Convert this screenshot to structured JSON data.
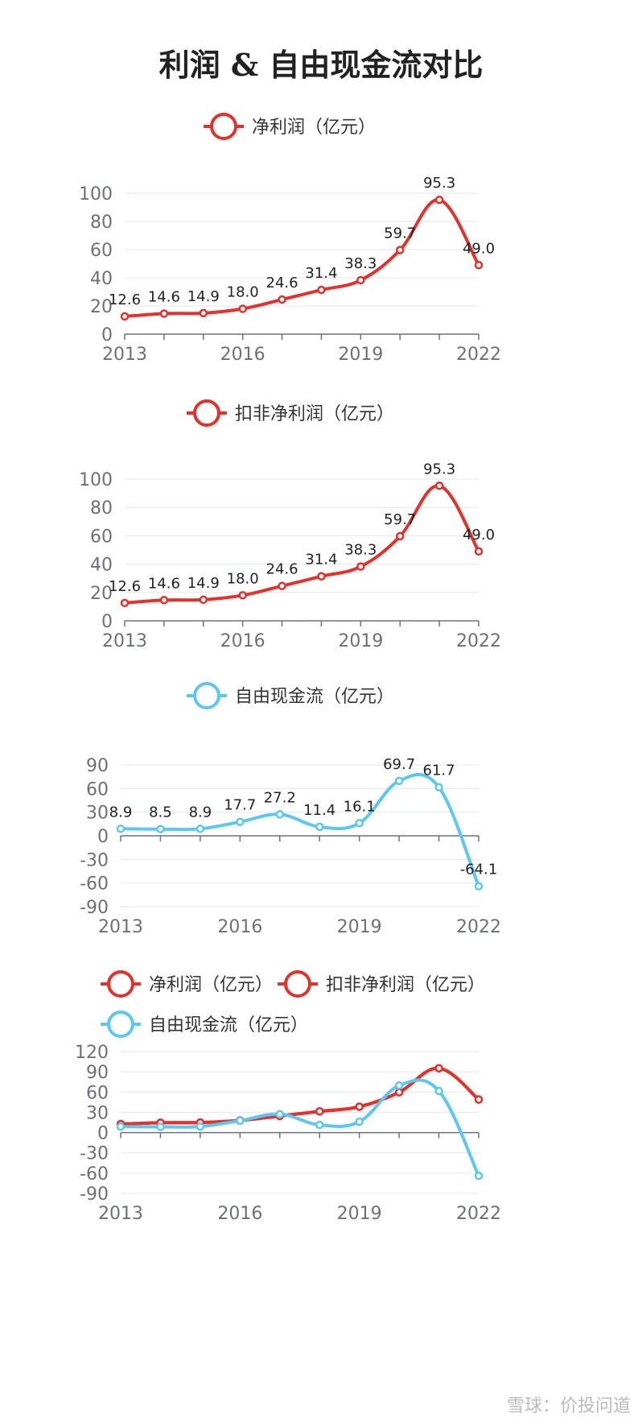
{
  "title": "利润 & 自由现金流对比",
  "watermark": "雪球：价投问道",
  "colors": {
    "red": "#e8302a",
    "blue": "#5ac8f2"
  },
  "chart_data": [
    {
      "type": "line",
      "legend": [
        "净利润（亿元）"
      ],
      "x": [
        2013,
        2014,
        2015,
        2016,
        2017,
        2018,
        2019,
        2020,
        2021,
        2022
      ],
      "x_tick_labels": [
        "2013",
        "2016",
        "2019",
        "2022"
      ],
      "y_ticks": [
        "0",
        "20",
        "40",
        "60",
        "80",
        "100"
      ],
      "ylim": [
        0,
        100
      ],
      "grid": true,
      "series": [
        {
          "name": "净利润（亿元）",
          "color": "red",
          "values": [
            12.6,
            14.6,
            14.9,
            18.0,
            24.6,
            31.4,
            38.3,
            59.7,
            95.3,
            49.0
          ],
          "labels": [
            "12.6",
            "14.6",
            "14.9",
            "18.0",
            "24.6",
            "31.4",
            "38.3",
            "59.7",
            "95.3",
            "49.0"
          ]
        }
      ]
    },
    {
      "type": "line",
      "legend": [
        "扣非净利润（亿元）"
      ],
      "x": [
        2013,
        2014,
        2015,
        2016,
        2017,
        2018,
        2019,
        2020,
        2021,
        2022
      ],
      "x_tick_labels": [
        "2013",
        "2016",
        "2019",
        "2022"
      ],
      "y_ticks": [
        "0",
        "20",
        "40",
        "60",
        "80",
        "100"
      ],
      "ylim": [
        0,
        100
      ],
      "grid": true,
      "series": [
        {
          "name": "扣非净利润（亿元）",
          "color": "red",
          "values": [
            12.6,
            14.6,
            14.9,
            18.0,
            24.6,
            31.4,
            38.3,
            59.7,
            95.3,
            49.0
          ],
          "labels": [
            "12.6",
            "14.6",
            "14.9",
            "18.0",
            "24.6",
            "31.4",
            "38.3",
            "59.7",
            "95.3",
            "49.0"
          ]
        }
      ]
    },
    {
      "type": "line",
      "legend": [
        "自由现金流（亿元）"
      ],
      "x": [
        2013,
        2014,
        2015,
        2016,
        2017,
        2018,
        2019,
        2020,
        2021,
        2022
      ],
      "x_tick_labels": [
        "2013",
        "2016",
        "2019",
        "2022"
      ],
      "y_ticks": [
        "-90",
        "-60",
        "-30",
        "0",
        "30",
        "60",
        "90"
      ],
      "ylim": [
        -90,
        90
      ],
      "grid": true,
      "series": [
        {
          "name": "自由现金流（亿元）",
          "color": "blue",
          "values": [
            8.9,
            8.5,
            8.9,
            17.7,
            27.2,
            11.4,
            16.1,
            69.7,
            61.7,
            -64.1
          ],
          "labels": [
            "8.9",
            "8.5",
            "8.9",
            "17.7",
            "27.2",
            "11.4",
            "16.1",
            "69.7",
            "61.7",
            "-64.1"
          ]
        }
      ]
    },
    {
      "type": "line",
      "legend": [
        "净利润（亿元）",
        "扣非净利润（亿元）",
        "自由现金流（亿元）"
      ],
      "x": [
        2013,
        2014,
        2015,
        2016,
        2017,
        2018,
        2019,
        2020,
        2021,
        2022
      ],
      "x_tick_labels": [
        "2013",
        "2016",
        "2019",
        "2022"
      ],
      "y_ticks": [
        "-90",
        "-60",
        "-30",
        "0",
        "30",
        "60",
        "90",
        "120"
      ],
      "ylim": [
        -90,
        120
      ],
      "grid": true,
      "series": [
        {
          "name": "净利润（亿元）",
          "color": "red",
          "values": [
            12.6,
            14.6,
            14.9,
            18.0,
            24.6,
            31.4,
            38.3,
            59.7,
            95.3,
            49.0
          ]
        },
        {
          "name": "扣非净利润（亿元）",
          "color": "red",
          "values": [
            12.6,
            14.6,
            14.9,
            18.0,
            24.6,
            31.4,
            38.3,
            59.7,
            95.3,
            49.0
          ]
        },
        {
          "name": "自由现金流（亿元）",
          "color": "blue",
          "values": [
            8.9,
            8.5,
            8.9,
            17.7,
            27.2,
            11.4,
            16.1,
            69.7,
            61.7,
            -64.1
          ]
        }
      ]
    }
  ]
}
